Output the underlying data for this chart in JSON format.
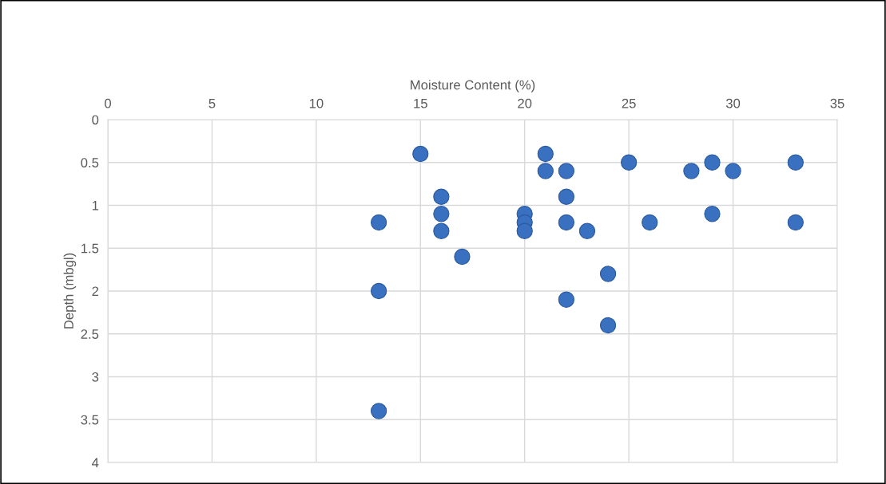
{
  "chart_data": {
    "type": "scatter",
    "xlabel": "Moisture Content (%)",
    "ylabel": "Depth (mbgl)",
    "x": [
      15,
      13,
      13,
      13,
      16,
      16,
      16,
      17,
      21,
      21,
      22,
      25,
      28,
      29,
      30,
      33,
      22,
      20,
      20,
      20,
      22,
      23,
      26,
      29,
      33,
      24,
      22,
      24
    ],
    "values": [
      0.4,
      1.2,
      2.0,
      3.4,
      0.9,
      1.1,
      1.3,
      1.6,
      0.4,
      0.6,
      0.6,
      0.5,
      0.6,
      0.5,
      0.6,
      0.5,
      0.9,
      1.1,
      1.2,
      1.3,
      1.2,
      1.3,
      1.2,
      1.1,
      1.2,
      1.8,
      2.1,
      2.4
    ],
    "color": "#3a70c0",
    "marker": "circle",
    "xlim": [
      0,
      35
    ],
    "xticks": [
      0,
      5,
      10,
      15,
      20,
      25,
      30,
      35
    ],
    "ylim": [
      4,
      0
    ],
    "yticks": [
      0,
      0.5,
      1,
      1.5,
      2,
      2.5,
      3,
      3.5,
      4
    ],
    "grid": true,
    "legend": false
  }
}
